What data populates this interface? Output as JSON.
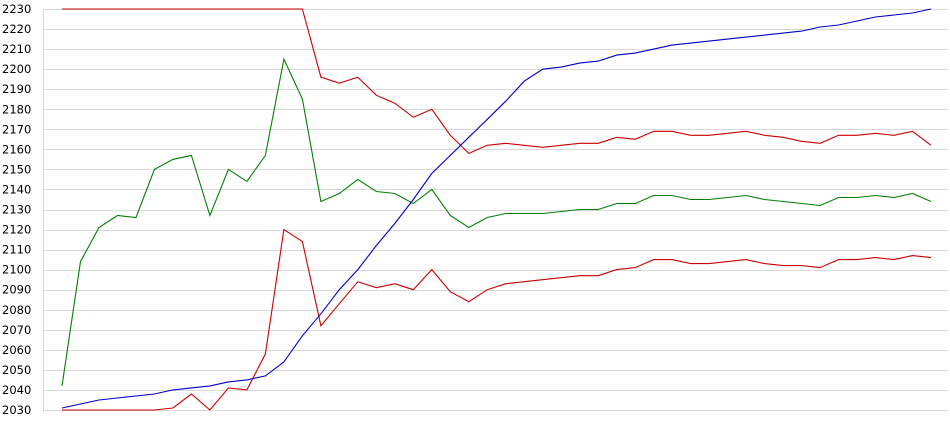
{
  "chart_data": {
    "type": "line",
    "title": "",
    "xlabel": "",
    "ylabel": "",
    "ylim": [
      2030,
      2230
    ],
    "yticks": [
      2030,
      2040,
      2050,
      2060,
      2070,
      2080,
      2090,
      2100,
      2110,
      2120,
      2130,
      2140,
      2150,
      2160,
      2170,
      2180,
      2190,
      2200,
      2210,
      2220,
      2230
    ],
    "y_tick_labels": [
      "2030",
      "2040",
      "2050",
      "2060",
      "2070",
      "2080",
      "2090",
      "2100",
      "2110",
      "2120",
      "2130",
      "2140",
      "2150",
      "2160",
      "2170",
      "2180",
      "2190",
      "2200",
      "2210",
      "2220",
      "2230"
    ],
    "x": [
      1,
      2,
      3,
      4,
      5,
      6,
      7,
      8,
      9,
      10,
      11,
      12,
      13,
      14,
      15,
      16,
      17,
      18,
      19,
      20,
      21,
      22,
      23,
      24,
      25,
      26,
      27,
      28,
      29,
      30,
      31,
      32,
      33,
      34,
      35,
      36,
      37,
      38,
      39,
      40,
      41,
      42,
      43,
      44,
      45,
      46,
      47,
      48
    ],
    "grid": true,
    "legend": "none",
    "series": [
      {
        "color": "#cc0000",
        "values": [
          2230,
          2230,
          2230,
          2230,
          2230,
          2230,
          2230,
          2230,
          2230,
          2230,
          2230,
          2230,
          2230,
          2230,
          2196,
          2193,
          2196,
          2187,
          2183,
          2176,
          2180,
          2167,
          2158,
          2162,
          2163,
          2162,
          2161,
          2162,
          2163,
          2163,
          2166,
          2165,
          2169,
          2169,
          2167,
          2167,
          2168,
          2169,
          2167,
          2166,
          2164,
          2163,
          2167,
          2167,
          2168,
          2167,
          2169,
          2162
        ]
      },
      {
        "color": "#008000",
        "values": [
          2042,
          2104,
          2121,
          2127,
          2126,
          2150,
          2155,
          2157,
          2127,
          2150,
          2144,
          2157,
          2205,
          2185,
          2134,
          2138,
          2145,
          2139,
          2138,
          2133,
          2140,
          2127,
          2121,
          2126,
          2128,
          2128,
          2128,
          2129,
          2130,
          2130,
          2133,
          2133,
          2137,
          2137,
          2135,
          2135,
          2136,
          2137,
          2135,
          2134,
          2133,
          2132,
          2136,
          2136,
          2137,
          2136,
          2138,
          2134
        ]
      },
      {
        "color": "#cc0000",
        "values": [
          2030,
          2030,
          2030,
          2030,
          2030,
          2030,
          2031,
          2038,
          2030,
          2041,
          2040,
          2058,
          2120,
          2114,
          2072,
          2083,
          2094,
          2091,
          2093,
          2090,
          2100,
          2089,
          2084,
          2090,
          2093,
          2094,
          2095,
          2096,
          2097,
          2097,
          2100,
          2101,
          2105,
          2105,
          2103,
          2103,
          2104,
          2105,
          2103,
          2102,
          2102,
          2101,
          2105,
          2105,
          2106,
          2105,
          2107,
          2106
        ]
      },
      {
        "color": "#0000cc",
        "values": [
          2031,
          2033,
          2035,
          2036,
          2037,
          2038,
          2040,
          2041,
          2042,
          2044,
          2045,
          2047,
          2054,
          2067,
          2078,
          2090,
          2100,
          2112,
          2123,
          2135,
          2148,
          2157,
          2166,
          2175,
          2184,
          2194,
          2200,
          2201,
          2203,
          2204,
          2207,
          2208,
          2210,
          2212,
          2213,
          2214,
          2215,
          2216,
          2217,
          2218,
          2219,
          2221,
          2222,
          2224,
          2226,
          2227,
          2228,
          2230
        ]
      }
    ]
  }
}
